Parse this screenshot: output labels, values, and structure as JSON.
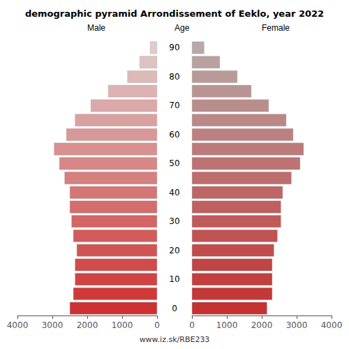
{
  "chart_data": {
    "type": "bar",
    "orientation": "horizontal",
    "title": "demographic pyramid Arrondissement of Eeklo, year 2022",
    "ylabel": "Age",
    "annotations": [
      "www.iz.sk/RBE233"
    ],
    "categories": [
      "0",
      null,
      "10",
      null,
      "20",
      null,
      "30",
      null,
      "40",
      null,
      "50",
      null,
      "60",
      null,
      "70",
      null,
      "80",
      null,
      "90"
    ],
    "series": [
      {
        "name": "Male",
        "values": [
          2500,
          2400,
          2350,
          2350,
          2300,
          2400,
          2450,
          2500,
          2500,
          2650,
          2800,
          2950,
          2600,
          2350,
          1900,
          1400,
          850,
          500,
          200
        ],
        "colors": [
          "#cd3232",
          "#ce3a3a",
          "#cf4343",
          "#d04b4b",
          "#d15454",
          "#d25c5c",
          "#d36565",
          "#d46d6d",
          "#d57676",
          "#d67f7f",
          "#d78787",
          "#d89090",
          "#d99898",
          "#daa1a1",
          "#dba9a9",
          "#dcb2b2",
          "#ddbaba",
          "#dec3c3",
          "#e0cccc"
        ]
      },
      {
        "name": "Female",
        "values": [
          2150,
          2300,
          2300,
          2300,
          2350,
          2450,
          2550,
          2550,
          2600,
          2850,
          3100,
          3200,
          2900,
          2700,
          2200,
          1700,
          1300,
          800,
          350
        ],
        "colors": [
          "#c43232",
          "#c33838",
          "#c23f3f",
          "#c24545",
          "#c14c4c",
          "#c05252",
          "#c05959",
          "#bf5f5f",
          "#be6666",
          "#be6d6d",
          "#bd7373",
          "#bc7a7a",
          "#bc8080",
          "#bb8787",
          "#ba8d8d",
          "#ba9494",
          "#b99a9a",
          "#b8a1a1",
          "#b8a8a8"
        ]
      }
    ],
    "xlim": [
      0,
      4000
    ],
    "xticks": [
      0,
      1000,
      2000,
      3000,
      4000
    ],
    "grid": false
  }
}
